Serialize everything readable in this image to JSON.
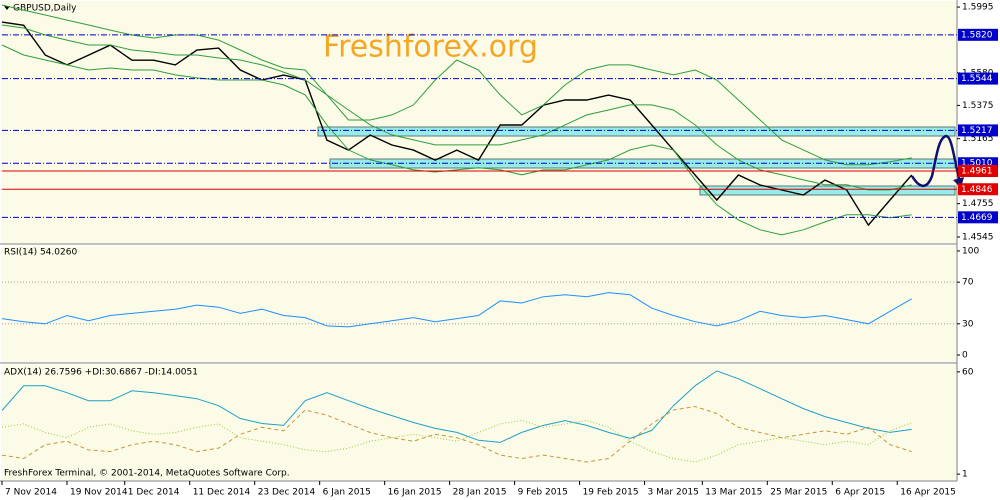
{
  "chart_data": [
    {
      "type": "line",
      "title": "GBPUSD,Daily",
      "watermark": "Freshforex.org",
      "x": [
        0,
        3,
        6,
        9,
        12,
        15,
        18,
        21,
        24,
        27,
        30,
        33,
        36,
        39,
        42,
        45,
        48,
        51,
        54,
        57,
        60,
        63,
        66,
        69,
        72,
        75,
        78,
        81,
        84,
        87,
        90,
        93,
        96,
        99,
        102,
        105,
        108,
        111,
        114,
        117,
        120,
        123,
        126
      ],
      "xlim": [
        0,
        132
      ],
      "ylim": [
        1.4507,
        1.6027
      ],
      "yticks": [
        1.5995,
        {
          "value": 1.558,
          "label": "1.5580"
        },
        1.5375,
        1.5165,
        1.4755,
        1.4545
      ],
      "series": [
        {
          "color": "#000000",
          "width": 1.4,
          "values": [
            1.59,
            1.588,
            1.5692,
            1.563,
            1.5692,
            1.5755,
            1.566,
            1.566,
            1.563,
            1.5724,
            1.5736,
            1.5598,
            1.5535,
            1.5566,
            1.5535,
            1.5156,
            1.5093,
            1.5188,
            1.5125,
            1.5093,
            1.503,
            1.5093,
            1.503,
            1.5251,
            1.5251,
            1.5377,
            1.5409,
            1.5409,
            1.544,
            1.5409,
            1.5251,
            1.5093,
            1.4936,
            1.4778,
            1.4936,
            1.4873,
            1.4841,
            1.481,
            1.4904,
            1.4841,
            1.462,
            1.4778,
            1.4936
          ]
        },
        {
          "color": "#2f9e3a",
          "width": 1,
          "values": [
            1.6008,
            1.5976,
            1.5945,
            1.5913,
            1.5882,
            1.585,
            1.5819,
            1.58,
            1.5819,
            1.5819,
            1.5787,
            1.5724,
            1.5661,
            1.5611,
            1.5598,
            1.5441,
            1.5283,
            1.5283,
            1.5315,
            1.5378,
            1.5535,
            1.5661,
            1.5598,
            1.5441,
            1.5315,
            1.5378,
            1.5504,
            1.5598,
            1.563,
            1.563,
            1.5598,
            1.5567,
            1.5598,
            1.5535,
            1.5409,
            1.5283,
            1.5157,
            1.5094,
            1.5031,
            1.5,
            1.5,
            1.5019,
            1.5044
          ]
        },
        {
          "color": "#2f9e3a",
          "width": 1,
          "values": [
            1.5882,
            1.5863,
            1.5819,
            1.5787,
            1.5756,
            1.5756,
            1.5724,
            1.5711,
            1.5693,
            1.5693,
            1.5674,
            1.5661,
            1.563,
            1.5585,
            1.5535,
            1.5441,
            1.5346,
            1.5252,
            1.5189,
            1.5157,
            1.5126,
            1.5126,
            1.5126,
            1.5126,
            1.5157,
            1.5189,
            1.5252,
            1.5315,
            1.5346,
            1.5378,
            1.5378,
            1.5346,
            1.5252,
            1.5126,
            1.5031,
            1.4968,
            1.4937,
            1.4905,
            1.4874,
            1.4874,
            1.4842,
            1.4842,
            1.4874
          ]
        },
        {
          "color": "#2f9e3a",
          "width": 1,
          "values": [
            1.5756,
            1.5693,
            1.5661,
            1.563,
            1.5598,
            1.5611,
            1.5598,
            1.5598,
            1.5567,
            1.5548,
            1.5535,
            1.5535,
            1.5535,
            1.5504,
            1.5441,
            1.5252,
            1.5094,
            1.5031,
            1.5,
            1.4968,
            1.4955,
            1.4968,
            1.4981,
            1.4968,
            1.4937,
            1.4968,
            1.4968,
            1.5,
            1.5031,
            1.5094,
            1.5126,
            1.5094,
            1.4905,
            1.4748,
            1.4653,
            1.459,
            1.4559,
            1.459,
            1.464,
            1.4685,
            1.4685,
            1.4666,
            1.4685
          ]
        }
      ],
      "levels": [
        {
          "value": 1.582,
          "label": "1.5820",
          "color": "#0000c8",
          "style": "dashdot"
        },
        {
          "value": 1.5544,
          "label": "1.5544",
          "color": "#0000c8",
          "style": "dashdot"
        },
        {
          "value": 1.5217,
          "label": "1.5217",
          "color": "#0000c8",
          "style": "dashdot"
        },
        {
          "value": 1.501,
          "label": "1.5010",
          "color": "#0000c8",
          "style": "dashdot"
        },
        {
          "value": 1.4961,
          "label": "1.4961",
          "color": "#e00000",
          "style": "solid"
        },
        {
          "value": 1.4846,
          "label": "1.4846",
          "color": "#e00000",
          "style": "solid"
        },
        {
          "value": 1.4669,
          "label": "1.4669",
          "color": "#0000c8",
          "style": "dashdot"
        }
      ]
    },
    {
      "type": "line",
      "title": "RSI(14) 54.0260",
      "x": [
        0,
        3,
        6,
        9,
        12,
        15,
        18,
        21,
        24,
        27,
        30,
        33,
        36,
        39,
        42,
        45,
        48,
        51,
        54,
        57,
        60,
        63,
        66,
        69,
        72,
        75,
        78,
        81,
        84,
        87,
        90,
        93,
        96,
        99,
        102,
        105,
        108,
        111,
        114,
        117,
        120,
        123,
        126
      ],
      "xlim": [
        0,
        132
      ],
      "ylim": [
        -6.7,
        103.8
      ],
      "yticks": [
        100,
        70,
        30,
        0
      ],
      "grid_levels": [
        70,
        30
      ],
      "series": [
        {
          "color": "#1e90ff",
          "width": 1,
          "values": [
            35,
            32,
            30,
            38,
            33,
            38,
            40,
            42,
            44,
            48,
            46,
            40,
            44,
            38,
            36,
            28,
            27,
            30,
            33,
            36,
            32,
            35,
            38,
            52,
            50,
            56,
            58,
            56,
            60,
            58,
            45,
            38,
            32,
            28,
            33,
            42,
            38,
            36,
            38,
            34,
            30,
            42,
            54
          ]
        }
      ]
    },
    {
      "type": "line",
      "title": "ADX(14) 26.7596 +DI:30.6867 -DI:14.0051",
      "x": [
        0,
        3,
        6,
        9,
        12,
        15,
        18,
        21,
        24,
        27,
        30,
        33,
        36,
        39,
        42,
        45,
        48,
        51,
        54,
        57,
        60,
        63,
        66,
        69,
        72,
        75,
        78,
        81,
        84,
        87,
        90,
        93,
        96,
        99,
        102,
        105,
        108,
        111,
        114,
        117,
        120,
        123,
        126
      ],
      "xlim": [
        0,
        132
      ],
      "ylim": [
        -2.4,
        63.4
      ],
      "yticks": [
        60,
        1
      ],
      "xticks": [
        {
          "value": 0,
          "label": "7 Nov 2014"
        },
        {
          "value": 9,
          "label": "19 Nov 2014"
        },
        {
          "value": 17,
          "label": "1 Dec 2014"
        },
        {
          "value": 26,
          "label": "11 Dec 2014"
        },
        {
          "value": 35,
          "label": "23 Dec 2014"
        },
        {
          "value": 44,
          "label": "6 Jan 2015"
        },
        {
          "value": 53,
          "label": "16 Jan 2015"
        },
        {
          "value": 62,
          "label": "28 Jan 2015"
        },
        {
          "value": 71,
          "label": "9 Feb 2015"
        },
        {
          "value": 80,
          "label": "19 Feb 2015"
        },
        {
          "value": 89,
          "label": "3 Mar 2015"
        },
        {
          "value": 97,
          "label": "13 Mar 2015"
        },
        {
          "value": 106,
          "label": "25 Mar 2015"
        },
        {
          "value": 115,
          "label": "6 Apr 2015"
        },
        {
          "value": 124,
          "label": "16 Apr 2015"
        }
      ],
      "series": [
        {
          "color": "#1ea0c8",
          "width": 1,
          "dash": "solid",
          "values": [
            37.7,
            52.0,
            52.0,
            48.0,
            43.4,
            43.4,
            49.1,
            48.0,
            46.3,
            44.5,
            40.5,
            33.1,
            30.2,
            29.1,
            43.4,
            48.0,
            43.4,
            38.8,
            34.8,
            30.8,
            27.4,
            25.1,
            20.5,
            19.3,
            25.1,
            29.1,
            31.9,
            29.1,
            25.1,
            21.6,
            26.2,
            40.5,
            52.0,
            60.6,
            56.0,
            50.3,
            44.5,
            38.8,
            34.2,
            30.8,
            27.4,
            25.1,
            26.8
          ]
        },
        {
          "color": "#9acd32",
          "width": 1,
          "dash": "dotted",
          "values": [
            28,
            30,
            25,
            22,
            28,
            30,
            26,
            24,
            25,
            28,
            30,
            22,
            20,
            18,
            15,
            14,
            16,
            20,
            22,
            24,
            22,
            20,
            25,
            30,
            32,
            28,
            30,
            32,
            28,
            20,
            14,
            10,
            8,
            12,
            18,
            20,
            22,
            20,
            18,
            20,
            18,
            26,
            30.7
          ]
        },
        {
          "color": "#c89632",
          "width": 1,
          "dash": "dashed",
          "values": [
            12,
            10,
            18,
            20,
            15,
            14,
            18,
            20,
            18,
            14,
            16,
            24,
            28,
            26,
            38,
            35,
            30,
            25,
            22,
            20,
            24,
            22,
            18,
            12,
            10,
            12,
            10,
            8,
            10,
            20,
            30,
            38,
            40,
            36,
            28,
            25,
            22,
            24,
            26,
            24,
            28,
            18,
            14
          ]
        }
      ]
    }
  ],
  "footer": "FreshForex Terminal, © 2001-2014, MetaQuotes Software Corp."
}
